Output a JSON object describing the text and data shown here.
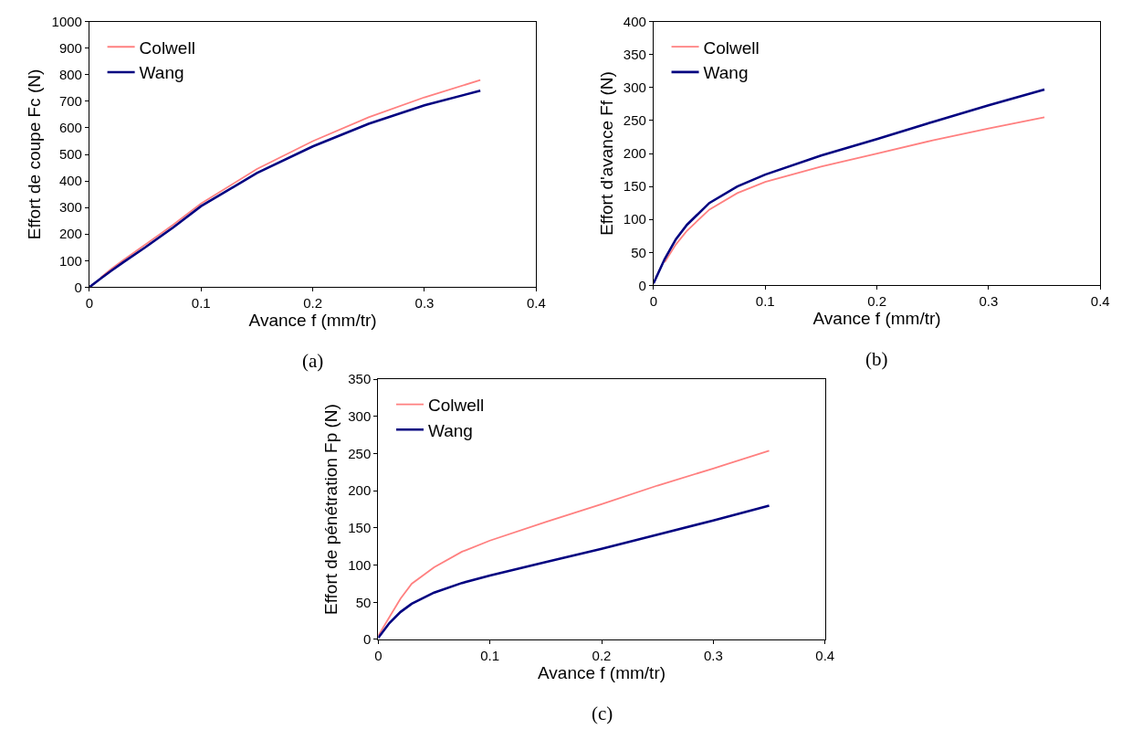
{
  "chart_data": [
    {
      "type": "line",
      "xlabel": "Avance f (mm/tr)",
      "ylabel": "Effort de coupe Fc (N)",
      "annotations": [
        "(a)"
      ],
      "x": [
        0,
        0.01,
        0.02,
        0.03,
        0.05,
        0.075,
        0.1,
        0.15,
        0.2,
        0.25,
        0.3,
        0.35
      ],
      "series": [
        {
          "name": "Colwell",
          "color": "#ff8080",
          "values": [
            null,
            36,
            70,
            101,
            160,
            235,
            315,
            445,
            550,
            640,
            715,
            780
          ]
        },
        {
          "name": "Wang",
          "color": "#000080",
          "values": [
            0,
            32,
            63,
            93,
            150,
            225,
            305,
            430,
            530,
            615,
            685,
            740
          ]
        }
      ],
      "xlim": [
        0,
        0.4
      ],
      "xticks": [
        0,
        0.1,
        0.2,
        0.3,
        0.4
      ],
      "ylim": [
        0,
        1000
      ],
      "yticks": [
        0,
        100,
        200,
        300,
        400,
        500,
        600,
        700,
        800,
        900,
        1000
      ],
      "grid": false,
      "legend": "top left",
      "marker": "none",
      "line_style": "solid"
    },
    {
      "type": "line",
      "xlabel": "Avance f (mm/tr)",
      "ylabel": "Effort d'avance Ff (N)",
      "annotations": [
        "(b)"
      ],
      "x": [
        0,
        0.01,
        0.02,
        0.03,
        0.05,
        0.075,
        0.1,
        0.15,
        0.2,
        0.25,
        0.3,
        0.35
      ],
      "series": [
        {
          "name": "Colwell",
          "color": "#ff8080",
          "values": [
            null,
            35,
            62,
            83,
            115,
            140,
            157,
            180,
            200,
            220,
            238,
            255
          ]
        },
        {
          "name": "Wang",
          "color": "#000080",
          "values": [
            3,
            40,
            70,
            92,
            125,
            150,
            168,
            197,
            222,
            248,
            273,
            297
          ]
        }
      ],
      "xlim": [
        0,
        0.4
      ],
      "xticks": [
        0,
        0.1,
        0.2,
        0.3,
        0.4
      ],
      "ylim": [
        0,
        400
      ],
      "yticks": [
        0,
        50,
        100,
        150,
        200,
        250,
        300,
        350,
        400
      ],
      "grid": false,
      "legend": "top left",
      "marker": "none",
      "line_style": "solid"
    },
    {
      "type": "line",
      "xlabel": "Avance f (mm/tr)",
      "ylabel": "Effort de pénétration Fp (N)",
      "annotations": [
        "(c)"
      ],
      "x": [
        0,
        0.01,
        0.02,
        0.03,
        0.05,
        0.075,
        0.1,
        0.15,
        0.2,
        0.25,
        0.3,
        0.35
      ],
      "series": [
        {
          "name": "Colwell",
          "color": "#ff8080",
          "values": [
            5,
            30,
            55,
            75,
            97,
            118,
            133,
            158,
            182,
            207,
            230,
            254
          ]
        },
        {
          "name": "Wang",
          "color": "#000080",
          "values": [
            2,
            22,
            37,
            48,
            63,
            76,
            86,
            104,
            122,
            141,
            160,
            180
          ]
        }
      ],
      "xlim": [
        0,
        0.4
      ],
      "xticks": [
        0,
        0.1,
        0.2,
        0.3,
        0.4
      ],
      "ylim": [
        0,
        350
      ],
      "yticks": [
        0,
        50,
        100,
        150,
        200,
        250,
        300,
        350
      ],
      "grid": false,
      "legend": "top left",
      "marker": "none",
      "line_style": "solid"
    }
  ]
}
